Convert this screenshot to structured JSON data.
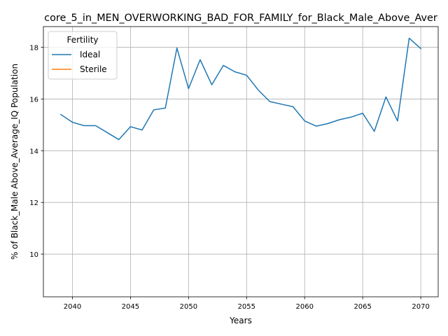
{
  "colors": {
    "ideal": "#1f77b4",
    "sterile": "#ff7f0e",
    "grid": "#b0b0b0",
    "axis": "#000000",
    "legend_border": "#cccccc"
  },
  "chart_data": {
    "type": "line",
    "title": "core_5_in_MEN_OVERWORKING_BAD_FOR_FAMILY_for_Black_Male_Above_Aver",
    "xlabel": "Years",
    "ylabel": "% of Black_Male Above_Average_IQ Population",
    "xlim": [
      2037.5,
      2071.5
    ],
    "ylim": [
      8.35,
      18.8
    ],
    "x_ticks": [
      2040,
      2045,
      2050,
      2055,
      2060,
      2065,
      2070
    ],
    "x_tick_labels": [
      "2040",
      "2045",
      "2050",
      "2055",
      "2060",
      "2065",
      "2070"
    ],
    "y_ticks": [
      10,
      12,
      14,
      16,
      18
    ],
    "y_tick_labels": [
      "10",
      "12",
      "14",
      "16",
      "18"
    ],
    "grid": true,
    "legend": {
      "title": "Fertility",
      "placement": "top-left",
      "entries": [
        "Ideal",
        "Sterile"
      ]
    },
    "series": [
      {
        "name": "Ideal",
        "x": [
          2039,
          2040,
          2041,
          2042,
          2043,
          2044,
          2045,
          2046,
          2047,
          2048,
          2049,
          2050,
          2051,
          2052,
          2053,
          2054,
          2055,
          2056,
          2057,
          2058,
          2059,
          2060,
          2061,
          2062,
          2063,
          2064,
          2065,
          2066,
          2067,
          2068,
          2069,
          2070
        ],
        "y": [
          15.4,
          15.1,
          14.97,
          14.97,
          14.7,
          14.43,
          14.93,
          14.8,
          15.58,
          15.65,
          17.97,
          16.4,
          17.52,
          16.55,
          17.3,
          17.05,
          16.92,
          16.35,
          15.9,
          15.8,
          15.7,
          15.15,
          14.95,
          15.05,
          15.2,
          15.3,
          15.45,
          14.75,
          16.08,
          15.15,
          18.35,
          17.95
        ]
      },
      {
        "name": "Sterile",
        "x": [],
        "y": []
      }
    ]
  }
}
